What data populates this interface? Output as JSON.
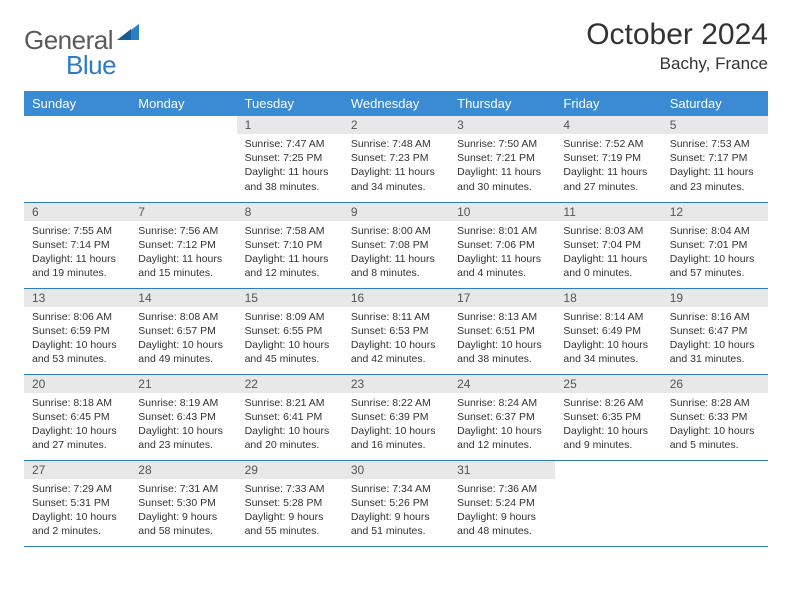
{
  "logo": {
    "text1": "General",
    "text2": "Blue"
  },
  "title": "October 2024",
  "location": "Bachy, France",
  "colors": {
    "header_bg": "#3b8bd4",
    "header_text": "#ffffff",
    "daynum_bg": "#e8e8e8",
    "border": "#2d7dc4",
    "logo_gray": "#5a5a5a",
    "logo_blue": "#2d7dc4"
  },
  "day_headers": [
    "Sunday",
    "Monday",
    "Tuesday",
    "Wednesday",
    "Thursday",
    "Friday",
    "Saturday"
  ],
  "weeks": [
    [
      {
        "n": "",
        "sr": "",
        "ss": "",
        "dl": ""
      },
      {
        "n": "",
        "sr": "",
        "ss": "",
        "dl": ""
      },
      {
        "n": "1",
        "sr": "Sunrise: 7:47 AM",
        "ss": "Sunset: 7:25 PM",
        "dl": "Daylight: 11 hours and 38 minutes."
      },
      {
        "n": "2",
        "sr": "Sunrise: 7:48 AM",
        "ss": "Sunset: 7:23 PM",
        "dl": "Daylight: 11 hours and 34 minutes."
      },
      {
        "n": "3",
        "sr": "Sunrise: 7:50 AM",
        "ss": "Sunset: 7:21 PM",
        "dl": "Daylight: 11 hours and 30 minutes."
      },
      {
        "n": "4",
        "sr": "Sunrise: 7:52 AM",
        "ss": "Sunset: 7:19 PM",
        "dl": "Daylight: 11 hours and 27 minutes."
      },
      {
        "n": "5",
        "sr": "Sunrise: 7:53 AM",
        "ss": "Sunset: 7:17 PM",
        "dl": "Daylight: 11 hours and 23 minutes."
      }
    ],
    [
      {
        "n": "6",
        "sr": "Sunrise: 7:55 AM",
        "ss": "Sunset: 7:14 PM",
        "dl": "Daylight: 11 hours and 19 minutes."
      },
      {
        "n": "7",
        "sr": "Sunrise: 7:56 AM",
        "ss": "Sunset: 7:12 PM",
        "dl": "Daylight: 11 hours and 15 minutes."
      },
      {
        "n": "8",
        "sr": "Sunrise: 7:58 AM",
        "ss": "Sunset: 7:10 PM",
        "dl": "Daylight: 11 hours and 12 minutes."
      },
      {
        "n": "9",
        "sr": "Sunrise: 8:00 AM",
        "ss": "Sunset: 7:08 PM",
        "dl": "Daylight: 11 hours and 8 minutes."
      },
      {
        "n": "10",
        "sr": "Sunrise: 8:01 AM",
        "ss": "Sunset: 7:06 PM",
        "dl": "Daylight: 11 hours and 4 minutes."
      },
      {
        "n": "11",
        "sr": "Sunrise: 8:03 AM",
        "ss": "Sunset: 7:04 PM",
        "dl": "Daylight: 11 hours and 0 minutes."
      },
      {
        "n": "12",
        "sr": "Sunrise: 8:04 AM",
        "ss": "Sunset: 7:01 PM",
        "dl": "Daylight: 10 hours and 57 minutes."
      }
    ],
    [
      {
        "n": "13",
        "sr": "Sunrise: 8:06 AM",
        "ss": "Sunset: 6:59 PM",
        "dl": "Daylight: 10 hours and 53 minutes."
      },
      {
        "n": "14",
        "sr": "Sunrise: 8:08 AM",
        "ss": "Sunset: 6:57 PM",
        "dl": "Daylight: 10 hours and 49 minutes."
      },
      {
        "n": "15",
        "sr": "Sunrise: 8:09 AM",
        "ss": "Sunset: 6:55 PM",
        "dl": "Daylight: 10 hours and 45 minutes."
      },
      {
        "n": "16",
        "sr": "Sunrise: 8:11 AM",
        "ss": "Sunset: 6:53 PM",
        "dl": "Daylight: 10 hours and 42 minutes."
      },
      {
        "n": "17",
        "sr": "Sunrise: 8:13 AM",
        "ss": "Sunset: 6:51 PM",
        "dl": "Daylight: 10 hours and 38 minutes."
      },
      {
        "n": "18",
        "sr": "Sunrise: 8:14 AM",
        "ss": "Sunset: 6:49 PM",
        "dl": "Daylight: 10 hours and 34 minutes."
      },
      {
        "n": "19",
        "sr": "Sunrise: 8:16 AM",
        "ss": "Sunset: 6:47 PM",
        "dl": "Daylight: 10 hours and 31 minutes."
      }
    ],
    [
      {
        "n": "20",
        "sr": "Sunrise: 8:18 AM",
        "ss": "Sunset: 6:45 PM",
        "dl": "Daylight: 10 hours and 27 minutes."
      },
      {
        "n": "21",
        "sr": "Sunrise: 8:19 AM",
        "ss": "Sunset: 6:43 PM",
        "dl": "Daylight: 10 hours and 23 minutes."
      },
      {
        "n": "22",
        "sr": "Sunrise: 8:21 AM",
        "ss": "Sunset: 6:41 PM",
        "dl": "Daylight: 10 hours and 20 minutes."
      },
      {
        "n": "23",
        "sr": "Sunrise: 8:22 AM",
        "ss": "Sunset: 6:39 PM",
        "dl": "Daylight: 10 hours and 16 minutes."
      },
      {
        "n": "24",
        "sr": "Sunrise: 8:24 AM",
        "ss": "Sunset: 6:37 PM",
        "dl": "Daylight: 10 hours and 12 minutes."
      },
      {
        "n": "25",
        "sr": "Sunrise: 8:26 AM",
        "ss": "Sunset: 6:35 PM",
        "dl": "Daylight: 10 hours and 9 minutes."
      },
      {
        "n": "26",
        "sr": "Sunrise: 8:28 AM",
        "ss": "Sunset: 6:33 PM",
        "dl": "Daylight: 10 hours and 5 minutes."
      }
    ],
    [
      {
        "n": "27",
        "sr": "Sunrise: 7:29 AM",
        "ss": "Sunset: 5:31 PM",
        "dl": "Daylight: 10 hours and 2 minutes."
      },
      {
        "n": "28",
        "sr": "Sunrise: 7:31 AM",
        "ss": "Sunset: 5:30 PM",
        "dl": "Daylight: 9 hours and 58 minutes."
      },
      {
        "n": "29",
        "sr": "Sunrise: 7:33 AM",
        "ss": "Sunset: 5:28 PM",
        "dl": "Daylight: 9 hours and 55 minutes."
      },
      {
        "n": "30",
        "sr": "Sunrise: 7:34 AM",
        "ss": "Sunset: 5:26 PM",
        "dl": "Daylight: 9 hours and 51 minutes."
      },
      {
        "n": "31",
        "sr": "Sunrise: 7:36 AM",
        "ss": "Sunset: 5:24 PM",
        "dl": "Daylight: 9 hours and 48 minutes."
      },
      {
        "n": "",
        "sr": "",
        "ss": "",
        "dl": ""
      },
      {
        "n": "",
        "sr": "",
        "ss": "",
        "dl": ""
      }
    ]
  ]
}
